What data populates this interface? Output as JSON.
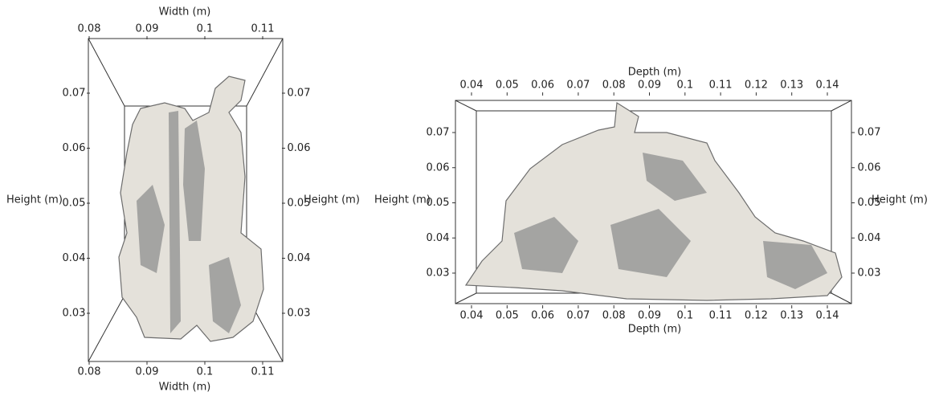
{
  "panels": [
    {
      "top_axis": {
        "title": "Width (m)",
        "ticks": [
          0.08,
          0.09,
          0.1,
          0.11
        ]
      },
      "bottom_axis": {
        "title": "Width (m)",
        "ticks": [
          0.08,
          0.09,
          0.1,
          0.11
        ]
      },
      "left_axis": {
        "title": "Height (m)",
        "ticks": [
          0.07,
          0.06,
          0.05,
          0.04,
          0.03
        ]
      },
      "right_axis": {
        "title": "Height (m)",
        "ticks": [
          0.07,
          0.06,
          0.05,
          0.04,
          0.03
        ]
      }
    },
    {
      "top_axis": {
        "title": "Depth (m)",
        "ticks": [
          0.04,
          0.05,
          0.06,
          0.07,
          0.08,
          0.09,
          0.1,
          0.11,
          0.12,
          0.13,
          0.14
        ]
      },
      "bottom_axis": {
        "title": "Depth (m)",
        "ticks": [
          0.04,
          0.05,
          0.06,
          0.07,
          0.08,
          0.09,
          0.1,
          0.11,
          0.12,
          0.13,
          0.14
        ]
      },
      "left_axis": {
        "title": "Height (m)",
        "ticks": [
          0.07,
          0.06,
          0.05,
          0.04,
          0.03
        ]
      },
      "right_axis": {
        "title": "Height (m)",
        "ticks": [
          0.07,
          0.06,
          0.05,
          0.04,
          0.03
        ]
      }
    }
  ]
}
